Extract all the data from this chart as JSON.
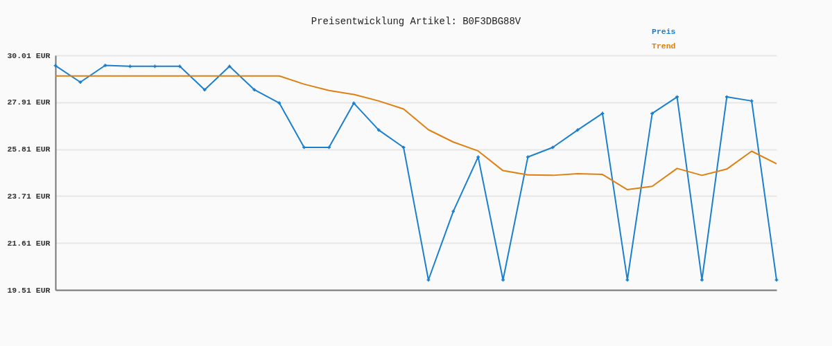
{
  "chart_data": {
    "type": "line",
    "title": "Preisentwicklung Artikel: B0F3DBG88V",
    "categories": [
      null,
      null,
      null,
      null,
      null,
      null,
      null,
      null,
      null,
      null,
      null,
      null,
      null,
      null,
      null,
      null,
      null,
      null,
      null,
      null,
      null,
      null,
      null,
      null,
      null,
      null,
      null,
      null,
      null,
      null
    ],
    "series": [
      {
        "name": "Preis",
        "color": "#1a7fcf",
        "marker": "cross",
        "values": [
          29.55,
          28.81,
          29.56,
          29.52,
          29.52,
          29.52,
          28.47,
          29.52,
          28.47,
          27.88,
          25.89,
          25.89,
          27.87,
          26.67,
          25.89,
          19.96,
          23.03,
          25.46,
          19.96,
          25.46,
          25.89,
          26.67,
          27.41,
          19.96,
          27.41,
          28.15,
          19.96,
          28.15,
          27.97,
          19.96
        ]
      },
      {
        "name": "Trend",
        "color": "#e07f10",
        "marker": "none",
        "values": [
          29.09,
          29.09,
          29.09,
          29.09,
          29.09,
          29.09,
          29.09,
          29.09,
          29.09,
          29.09,
          28.72,
          28.44,
          28.26,
          27.97,
          27.61,
          26.68,
          26.13,
          25.73,
          24.85,
          24.66,
          24.64,
          24.71,
          24.68,
          24.0,
          24.15,
          24.95,
          24.64,
          24.92,
          25.72,
          25.16
        ]
      }
    ],
    "ylim": [
      19.51,
      30.01
    ],
    "yticks": [
      {
        "value": 19.51,
        "label": "19.51 EUR"
      },
      {
        "value": 21.61,
        "label": "21.61 EUR"
      },
      {
        "value": 23.71,
        "label": "23.71 EUR"
      },
      {
        "value": 25.81,
        "label": "25.81 EUR"
      },
      {
        "value": 27.91,
        "label": "27.91 EUR"
      },
      {
        "value": 30.01,
        "label": "30.01 EUR"
      }
    ],
    "grid": "y",
    "legend": "top right",
    "tick_labels": "y",
    "line_style": "solid"
  }
}
